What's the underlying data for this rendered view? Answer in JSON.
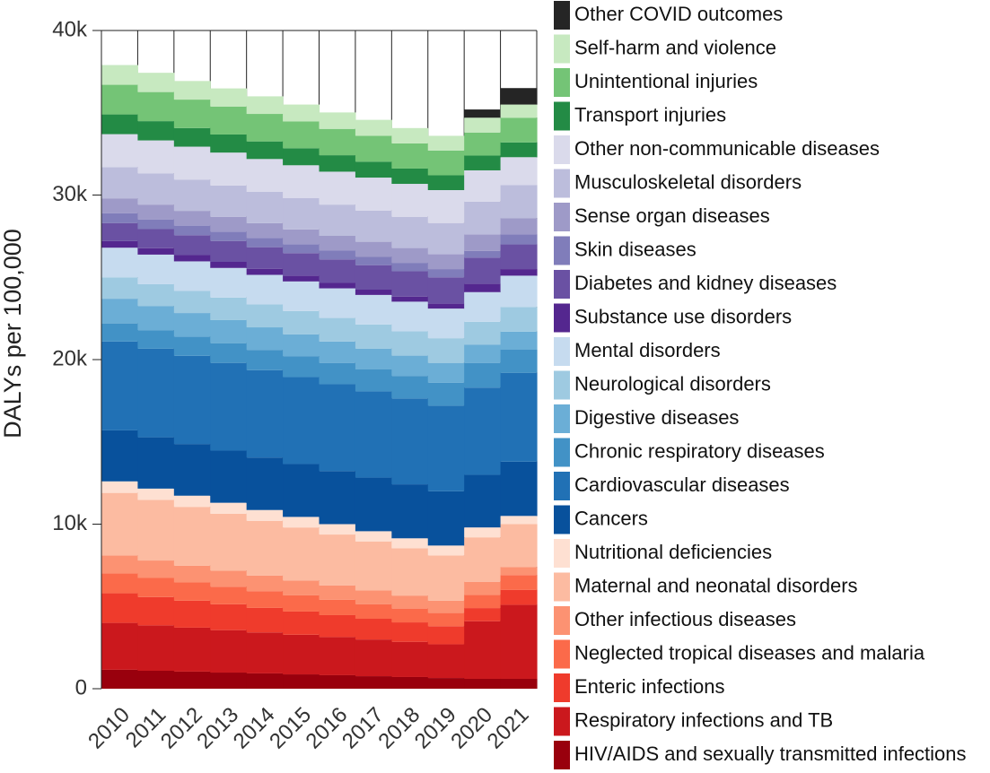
{
  "chart_data": {
    "type": "stacked-step-area",
    "y_label": "DALYs per 100,000",
    "categories": [
      "2010",
      "2011",
      "2012",
      "2013",
      "2014",
      "2015",
      "2016",
      "2017",
      "2018",
      "2019",
      "2020",
      "2021"
    ],
    "ylim": [
      0,
      40000
    ],
    "yticks": [
      0,
      {
        "value": 10000,
        "label": "10k"
      },
      {
        "value": 20000,
        "label": "20k"
      },
      {
        "value": 30000,
        "label": "30k"
      },
      {
        "value": 40000,
        "label": "40k"
      }
    ],
    "series": [
      {
        "name": "HIV/AIDS and sexually transmitted infections",
        "color": "#99000d",
        "values": [
          1150,
          1090,
          1040,
          980,
          930,
          870,
          820,
          760,
          710,
          650,
          600,
          600
        ]
      },
      {
        "name": "Respiratory infections and TB",
        "color": "#cb181d",
        "values": [
          2850,
          2760,
          2670,
          2580,
          2490,
          2410,
          2320,
          2230,
          2140,
          2050,
          3500,
          4500
        ]
      },
      {
        "name": "Enteric infections",
        "color": "#ef3b2c",
        "values": [
          1800,
          1720,
          1640,
          1570,
          1490,
          1410,
          1330,
          1260,
          1180,
          1100,
          800,
          900
        ]
      },
      {
        "name": "Neglected tropical diseases and malaria",
        "color": "#fb6a4a",
        "values": [
          1200,
          1160,
          1110,
          1070,
          1020,
          980,
          930,
          890,
          840,
          800,
          800,
          900
        ]
      },
      {
        "name": "Other infectious diseases",
        "color": "#fc9272",
        "values": [
          1100,
          1060,
          1020,
          980,
          940,
          910,
          870,
          830,
          790,
          750,
          800,
          500
        ]
      },
      {
        "name": "Maternal and neonatal disorders",
        "color": "#fcbba1",
        "values": [
          3800,
          3680,
          3570,
          3450,
          3330,
          3220,
          3100,
          2980,
          2870,
          2750,
          2700,
          2600
        ]
      },
      {
        "name": "Nutritional deficiencies",
        "color": "#fee0d2",
        "values": [
          700,
          690,
          680,
          670,
          660,
          640,
          630,
          620,
          610,
          600,
          600,
          500
        ]
      },
      {
        "name": "Cancers",
        "color": "#08519c",
        "values": [
          3100,
          3120,
          3140,
          3170,
          3190,
          3210,
          3230,
          3260,
          3280,
          3300,
          3200,
          3300
        ]
      },
      {
        "name": "Cardiovascular diseases",
        "color": "#2171b5",
        "values": [
          5400,
          5380,
          5360,
          5330,
          5310,
          5290,
          5270,
          5240,
          5220,
          5200,
          5300,
          5400
        ]
      },
      {
        "name": "Chronic respiratory diseases",
        "color": "#4292c6",
        "values": [
          1100,
          1130,
          1170,
          1200,
          1230,
          1270,
          1300,
          1330,
          1370,
          1400,
          1500,
          1400
        ]
      },
      {
        "name": "Digestive diseases",
        "color": "#6baed6",
        "values": [
          1500,
          1470,
          1430,
          1400,
          1370,
          1330,
          1300,
          1270,
          1230,
          1200,
          1100,
          1100
        ]
      },
      {
        "name": "Neurological disorders",
        "color": "#9ecae1",
        "values": [
          1300,
          1320,
          1340,
          1370,
          1390,
          1410,
          1430,
          1460,
          1480,
          1500,
          1400,
          1500
        ]
      },
      {
        "name": "Mental disorders",
        "color": "#c6dbef",
        "values": [
          1800,
          1800,
          1800,
          1800,
          1800,
          1800,
          1800,
          1800,
          1800,
          1800,
          1800,
          1900
        ]
      },
      {
        "name": "Substance use disorders",
        "color": "#54278f",
        "values": [
          400,
          390,
          380,
          370,
          360,
          340,
          330,
          320,
          310,
          300,
          500,
          400
        ]
      },
      {
        "name": "Diabetes and kidney diseases",
        "color": "#6a51a3",
        "values": [
          1100,
          1160,
          1210,
          1270,
          1320,
          1380,
          1430,
          1490,
          1540,
          1600,
          1600,
          1500
        ]
      },
      {
        "name": "Skin diseases",
        "color": "#807dba",
        "values": [
          600,
          590,
          580,
          570,
          560,
          540,
          530,
          520,
          510,
          500,
          400,
          600
        ]
      },
      {
        "name": "Sense organ diseases",
        "color": "#9e9ac8",
        "values": [
          900,
          900,
          900,
          900,
          900,
          900,
          900,
          900,
          900,
          900,
          1000,
          1000
        ]
      },
      {
        "name": "Musculoskeletal disorders",
        "color": "#bcbddc",
        "values": [
          1900,
          1900,
          1900,
          1900,
          1900,
          1900,
          1900,
          1900,
          1900,
          1900,
          2000,
          2000
        ]
      },
      {
        "name": "Other non-communicable diseases",
        "color": "#dadaeb",
        "values": [
          2000,
          2000,
          2000,
          2000,
          2000,
          2000,
          2000,
          2000,
          2000,
          2000,
          1900,
          1700
        ]
      },
      {
        "name": "Transport injuries",
        "color": "#238b45",
        "values": [
          1200,
          1170,
          1130,
          1100,
          1070,
          1030,
          1000,
          970,
          930,
          900,
          900,
          900
        ]
      },
      {
        "name": "Unintentional injuries",
        "color": "#74c476",
        "values": [
          1800,
          1770,
          1730,
          1700,
          1670,
          1630,
          1600,
          1570,
          1530,
          1500,
          1400,
          1500
        ]
      },
      {
        "name": "Self-harm and violence",
        "color": "#c7e9c0",
        "values": [
          1200,
          1170,
          1130,
          1100,
          1070,
          1030,
          1000,
          970,
          930,
          900,
          900,
          800
        ]
      },
      {
        "name": "Other COVID outcomes",
        "color": "#252525",
        "values": [
          0,
          0,
          0,
          0,
          0,
          0,
          0,
          0,
          0,
          0,
          500,
          1000
        ]
      }
    ]
  }
}
